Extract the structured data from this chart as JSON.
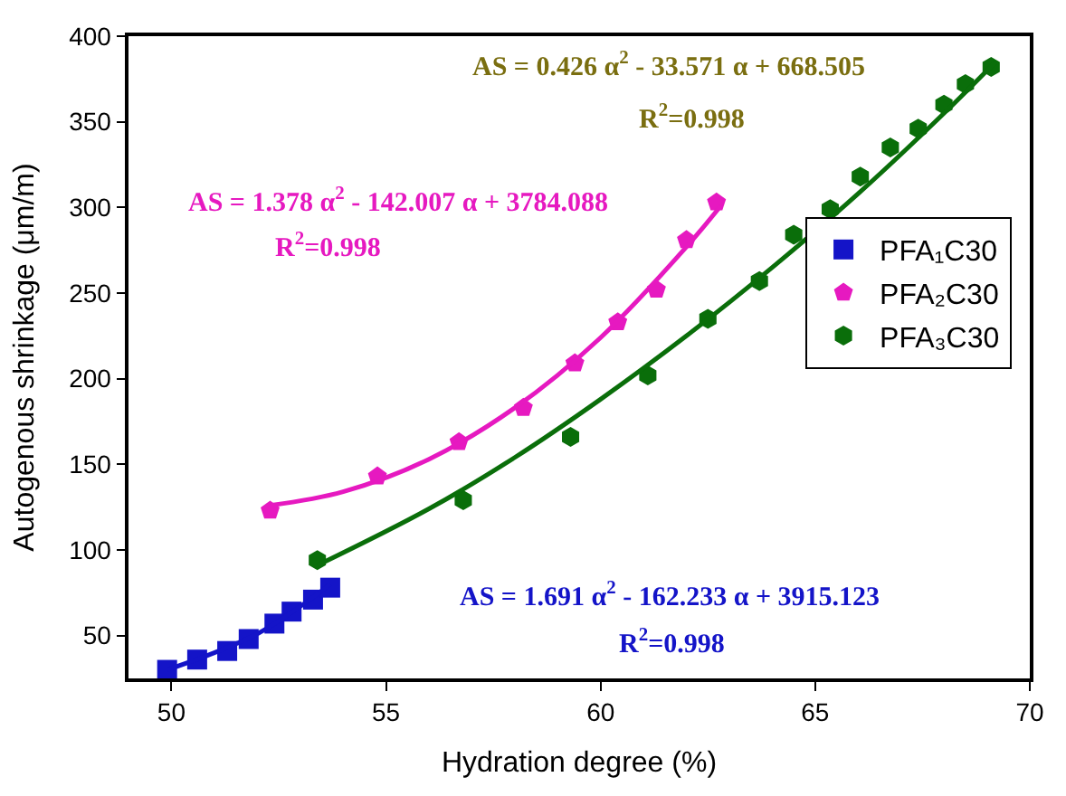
{
  "chart_data": {
    "type": "scatter",
    "xlabel": "Hydration degree (%)",
    "ylabel": "Autogenous shrinkage (μm/m)",
    "xlim": [
      49,
      70
    ],
    "xticks": [
      50,
      55,
      60,
      65,
      70
    ],
    "ylim": [
      25,
      400
    ],
    "yticks": [
      50,
      100,
      150,
      200,
      250,
      300,
      350,
      400
    ],
    "legend": "right",
    "series": [
      {
        "name": "PFA₁C30",
        "color": "#1414c8",
        "marker": "square",
        "x": [
          49.9,
          50.6,
          51.3,
          51.8,
          52.4,
          52.8,
          53.3,
          53.7
        ],
        "values": [
          30,
          36,
          41,
          48,
          57,
          64,
          71,
          78
        ]
      },
      {
        "name": "PFA₂C30",
        "color": "#e619c0",
        "x": [
          52.3,
          54.8,
          56.7,
          58.2,
          59.4,
          60.4,
          61.3,
          62.0,
          62.7
        ],
        "values": [
          123,
          143,
          163,
          183,
          209,
          233,
          252,
          281,
          303
        ]
      },
      {
        "name": "PFA₃C30",
        "color": "#0a6e0a",
        "x": [
          53.4,
          56.8,
          59.3,
          61.1,
          62.5,
          63.7,
          64.5,
          65.35,
          66.05,
          66.75,
          67.4,
          68.0,
          68.5,
          69.1
        ],
        "values": [
          94,
          129,
          166,
          202,
          235,
          257,
          284,
          299,
          318,
          335,
          346,
          360,
          372,
          382
        ]
      },
      {
        "type": "line",
        "color": "#1414c8",
        "marker": "none",
        "x": [
          49.9,
          51,
          52,
          53,
          53.7
        ],
        "values": [
          30,
          40,
          51,
          67,
          80
        ]
      },
      {
        "type": "line",
        "color": "#e619c0",
        "marker": "none",
        "x": [
          52.3,
          54,
          56,
          58,
          60,
          62,
          62.8
        ],
        "values": [
          126,
          134,
          153,
          183,
          224,
          277,
          301
        ]
      },
      {
        "type": "line",
        "color": "#0a6e0a",
        "marker": "none",
        "x": [
          53.4,
          56,
          58,
          60,
          62,
          64,
          66,
          68,
          69.2
        ],
        "values": [
          91,
          124,
          154,
          188,
          225,
          265,
          308,
          355,
          385
        ]
      }
    ],
    "annotations": [
      "AS = 0.426 α$^{2}$ - 33.571 α + 668.505",
      "R$^{2}$=0.998",
      "AS = 1.378 α$^{2}$ - 142.007 α + 3784.088",
      "R$^{2}$=0.998",
      "AS = 1.691 α$^{2}$ - 162.233 α + 3915.123",
      "R$^{2}$=0.998"
    ]
  }
}
